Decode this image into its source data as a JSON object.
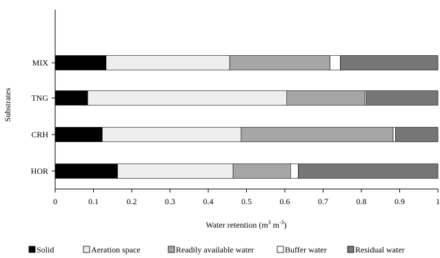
{
  "chart_data": {
    "type": "bar",
    "orientation": "horizontal",
    "stacked": true,
    "categories": [
      "MIX",
      "TNG",
      "CRH",
      "HOR"
    ],
    "series": [
      {
        "name": "Solid",
        "color": "#000000",
        "values": [
          0.133,
          0.085,
          0.123,
          0.163
        ]
      },
      {
        "name": "Aeration space",
        "color": "#eeeeee",
        "values": [
          0.323,
          0.52,
          0.363,
          0.302
        ]
      },
      {
        "name": "Readily available water",
        "color": "#a6a6a6",
        "values": [
          0.262,
          0.203,
          0.397,
          0.15
        ]
      },
      {
        "name": "Buffer water",
        "color": "#ffffff",
        "values": [
          0.027,
          0.004,
          0.006,
          0.02
        ]
      },
      {
        "name": "Residual water",
        "color": "#767676",
        "values": [
          0.255,
          0.188,
          0.111,
          0.365
        ]
      }
    ],
    "x_ticks": [
      "0",
      "0.1",
      "0.2",
      "0.3",
      "0.4",
      "0.5",
      "0.6",
      "0.7",
      "0.8",
      "0.9",
      "1"
    ],
    "xlim": [
      0,
      1
    ],
    "xlabel": "Water retention (m",
    "xlabel_sup1": "3",
    "xlabel_mid": " m",
    "xlabel_sup2": "-3",
    "xlabel_end": ")",
    "ylabel": "Substrates",
    "grid": false,
    "legend_position": "bottom"
  }
}
